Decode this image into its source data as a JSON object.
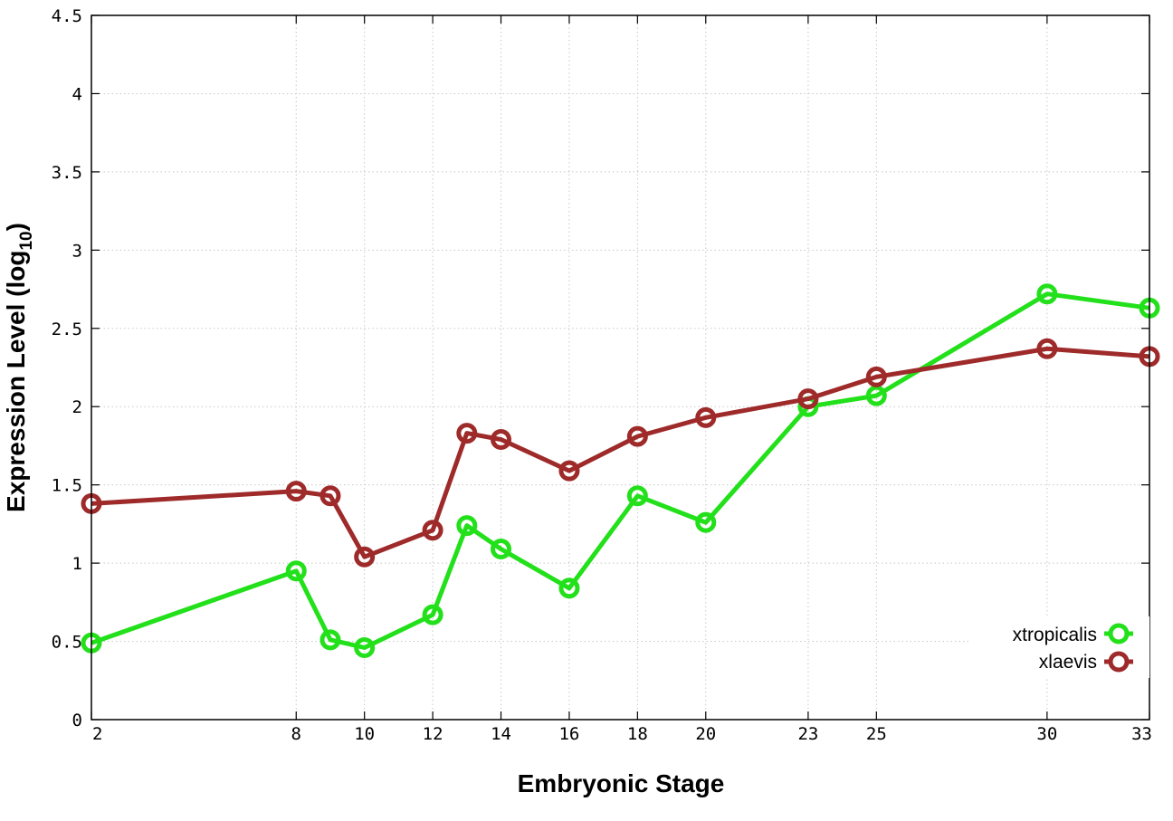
{
  "chart_data": {
    "type": "line",
    "title": "",
    "xlabel": "Embryonic Stage",
    "ylabel": "Expression Level (log",
    "ylabel_subscript": "10",
    "ylabel_suffix": ")",
    "ylim": [
      0,
      4.5
    ],
    "grid": true,
    "legend_position": "bottom-right",
    "categories": [
      "2",
      "8",
      "9",
      "10",
      "12",
      "13",
      "14",
      "16",
      "18",
      "20",
      "23",
      "25",
      "30",
      "33"
    ],
    "x_tick_labels": [
      "2",
      "8",
      "10",
      "12",
      "14",
      "16",
      "18",
      "20",
      "23",
      "25",
      "30",
      "33"
    ],
    "y_tick_labels": [
      "0",
      "0.5",
      "1",
      "1.5",
      "2",
      "2.5",
      "3",
      "3.5",
      "4",
      "4.5"
    ],
    "series": [
      {
        "name": "xtropicalis",
        "color": "#22e01a",
        "values": [
          0.49,
          0.95,
          0.51,
          0.46,
          0.67,
          1.24,
          1.09,
          0.84,
          1.43,
          1.26,
          2.0,
          2.07,
          2.72,
          2.63
        ]
      },
      {
        "name": "xlaevis",
        "color": "#9e2a2a",
        "values": [
          1.38,
          1.46,
          1.43,
          1.04,
          1.21,
          1.83,
          1.79,
          1.59,
          1.81,
          1.93,
          2.05,
          2.19,
          2.37,
          2.32
        ]
      }
    ]
  }
}
